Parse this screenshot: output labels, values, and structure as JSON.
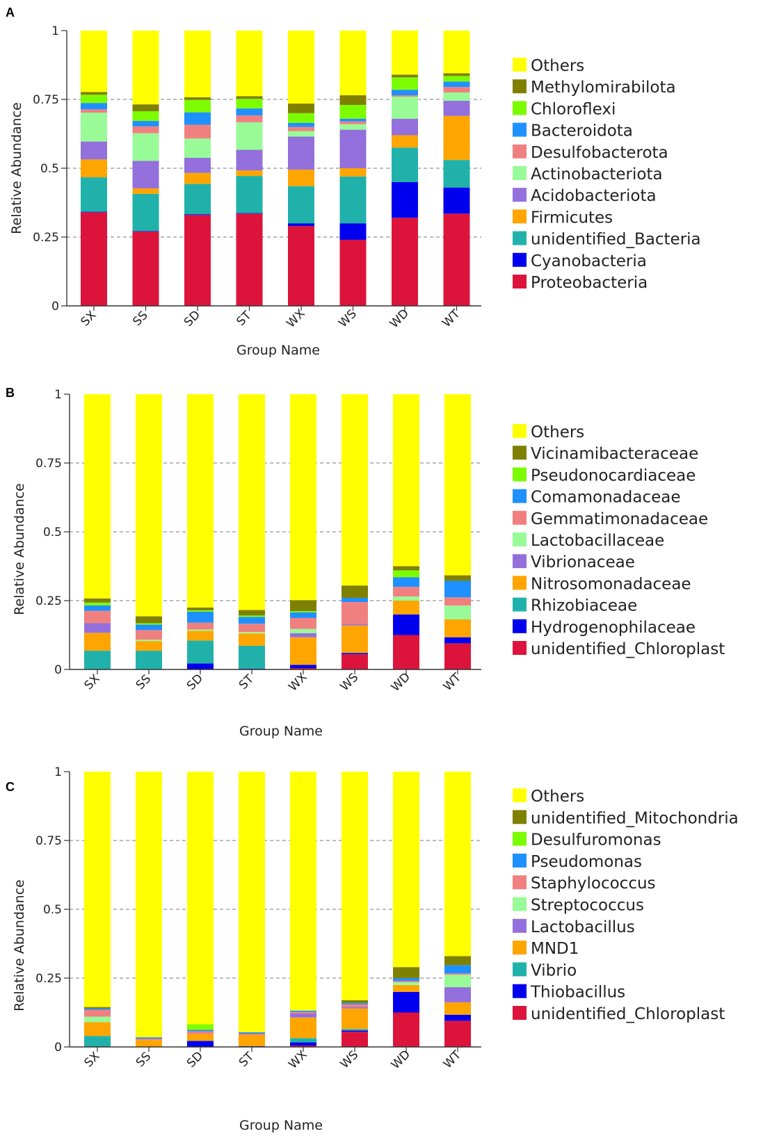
{
  "colors": {
    "Proteobacteria": "#dc143c",
    "Cyanobacteria": "#0000ee",
    "unidentified_Bacteria": "#20b2aa",
    "Firmicutes": "#ffa500",
    "Acidobacteriota": "#9370db",
    "Actinobacteriota": "#98fb98",
    "Desulfobacterota": "#f08080",
    "Bacteroidota": "#1e90ff",
    "Chloroflexi": "#7cfc00",
    "Methylomirabilota": "#808000",
    "Others": "#ffff00"
  },
  "chart_data": [
    {
      "panel": "A",
      "type": "bar",
      "stacked": true,
      "xlabel": "Group Name",
      "ylabel": "Relative Abundance",
      "ylim": [
        0,
        1
      ],
      "yticks": [
        "0",
        "0.25",
        "0.5",
        "0.75",
        "1"
      ],
      "categories": [
        "SX",
        "SS",
        "SD",
        "ST",
        "WX",
        "WS",
        "WD",
        "WT"
      ],
      "legend_position": "right",
      "series": [
        {
          "name": "Proteobacteria",
          "color": "#dc143c",
          "values": [
            0.34,
            0.27,
            0.33,
            0.335,
            0.29,
            0.24,
            0.32,
            0.335
          ]
        },
        {
          "name": "Cyanobacteria",
          "color": "#0000ee",
          "values": [
            0.002,
            0.002,
            0.003,
            0.002,
            0.01,
            0.06,
            0.13,
            0.095
          ]
        },
        {
          "name": "unidentified_Bacteria",
          "color": "#20b2aa",
          "values": [
            0.125,
            0.135,
            0.11,
            0.135,
            0.135,
            0.17,
            0.125,
            0.1
          ]
        },
        {
          "name": "Firmicutes",
          "color": "#ffa500",
          "values": [
            0.065,
            0.02,
            0.04,
            0.02,
            0.06,
            0.03,
            0.045,
            0.16
          ]
        },
        {
          "name": "Acidobacteriota",
          "color": "#9370db",
          "values": [
            0.065,
            0.1,
            0.055,
            0.075,
            0.12,
            0.14,
            0.06,
            0.055
          ]
        },
        {
          "name": "Actinobacteriota",
          "color": "#98fb98",
          "values": [
            0.105,
            0.1,
            0.07,
            0.1,
            0.02,
            0.02,
            0.08,
            0.03
          ]
        },
        {
          "name": "Desulfobacterota",
          "color": "#f08080",
          "values": [
            0.012,
            0.025,
            0.05,
            0.025,
            0.015,
            0.01,
            0.005,
            0.02
          ]
        },
        {
          "name": "Bacteroidota",
          "color": "#1e90ff",
          "values": [
            0.023,
            0.02,
            0.045,
            0.025,
            0.015,
            0.01,
            0.02,
            0.02
          ]
        },
        {
          "name": "Chloroflexi",
          "color": "#7cfc00",
          "values": [
            0.03,
            0.035,
            0.045,
            0.035,
            0.035,
            0.05,
            0.045,
            0.02
          ]
        },
        {
          "name": "Methylomirabilota",
          "color": "#808000",
          "values": [
            0.01,
            0.025,
            0.01,
            0.01,
            0.035,
            0.035,
            0.01,
            0.01
          ]
        },
        {
          "name": "Others",
          "color": "#ffff00",
          "values": [
            0.223,
            0.268,
            0.242,
            0.238,
            0.265,
            0.235,
            0.16,
            0.155
          ]
        }
      ]
    },
    {
      "panel": "B",
      "type": "bar",
      "stacked": true,
      "xlabel": "Group Name",
      "ylabel": "Relative Abundance",
      "ylim": [
        0,
        1
      ],
      "yticks": [
        "0",
        "0.25",
        "0.5",
        "0.75",
        "1"
      ],
      "categories": [
        "SX",
        "SS",
        "SD",
        "ST",
        "WX",
        "WS",
        "WD",
        "WT"
      ],
      "legend_position": "right",
      "series": [
        {
          "name": "unidentified_Chloroplast",
          "color": "#dc143c",
          "values": [
            0.0,
            0.0,
            0.0,
            0.0,
            0.005,
            0.055,
            0.125,
            0.095
          ]
        },
        {
          "name": "Hydrogenophilaceae",
          "color": "#0000ee",
          "values": [
            0.0,
            0.0,
            0.022,
            0.003,
            0.012,
            0.005,
            0.075,
            0.022
          ]
        },
        {
          "name": "Rhizobiaceae",
          "color": "#20b2aa",
          "values": [
            0.068,
            0.068,
            0.083,
            0.083,
            0.0,
            0.0,
            0.0,
            0.0
          ]
        },
        {
          "name": "Nitrosomonadaceae",
          "color": "#ffa500",
          "values": [
            0.065,
            0.035,
            0.035,
            0.045,
            0.1,
            0.1,
            0.05,
            0.065
          ]
        },
        {
          "name": "Vibrionaceae",
          "color": "#9370db",
          "values": [
            0.035,
            0.0,
            0.0,
            0.0,
            0.015,
            0.005,
            0.0,
            0.0
          ]
        },
        {
          "name": "Lactobacillaceae",
          "color": "#98fb98",
          "values": [
            0.0,
            0.005,
            0.005,
            0.005,
            0.015,
            0.0,
            0.015,
            0.05
          ]
        },
        {
          "name": "Gemmatimonadaceae",
          "color": "#f08080",
          "values": [
            0.045,
            0.035,
            0.025,
            0.03,
            0.04,
            0.08,
            0.035,
            0.03
          ]
        },
        {
          "name": "Comamonadaceae",
          "color": "#1e90ff",
          "values": [
            0.02,
            0.02,
            0.04,
            0.025,
            0.02,
            0.015,
            0.035,
            0.06
          ]
        },
        {
          "name": "Pseudonocardiaceae",
          "color": "#7cfc00",
          "values": [
            0.01,
            0.005,
            0.005,
            0.005,
            0.005,
            0.0,
            0.025,
            0.0
          ]
        },
        {
          "name": "Vicinamibacteraceae",
          "color": "#808000",
          "values": [
            0.015,
            0.025,
            0.01,
            0.02,
            0.04,
            0.045,
            0.015,
            0.02
          ]
        },
        {
          "name": "Others",
          "color": "#ffff00",
          "values": [
            0.742,
            0.807,
            0.775,
            0.784,
            0.748,
            0.695,
            0.625,
            0.658
          ]
        }
      ]
    },
    {
      "panel": "C",
      "type": "bar",
      "stacked": true,
      "xlabel": "Group Name",
      "ylabel": "Relative Abundance",
      "ylim": [
        0,
        1
      ],
      "yticks": [
        "0",
        "0.25",
        "0.5",
        "0.75",
        "1"
      ],
      "categories": [
        "SX",
        "SS",
        "SD",
        "ST",
        "WX",
        "WS",
        "WD",
        "WT"
      ],
      "legend_position": "right",
      "series": [
        {
          "name": "unidentified_Chloroplast",
          "color": "#dc143c",
          "values": [
            0.0,
            0.0,
            0.0,
            0.0,
            0.005,
            0.055,
            0.125,
            0.095
          ]
        },
        {
          "name": "Thiobacillus",
          "color": "#0000ee",
          "values": [
            0.0,
            0.0,
            0.022,
            0.003,
            0.012,
            0.005,
            0.075,
            0.022
          ]
        },
        {
          "name": "Vibrio",
          "color": "#20b2aa",
          "values": [
            0.04,
            0.0,
            0.0,
            0.0,
            0.015,
            0.005,
            0.0,
            0.0
          ]
        },
        {
          "name": "MND1",
          "color": "#ffa500",
          "values": [
            0.05,
            0.025,
            0.025,
            0.04,
            0.075,
            0.075,
            0.025,
            0.045
          ]
        },
        {
          "name": "Lactobacillus",
          "color": "#9370db",
          "values": [
            0.0,
            0.0,
            0.0,
            0.0,
            0.015,
            0.005,
            0.0,
            0.055
          ]
        },
        {
          "name": "Streptococcus",
          "color": "#98fb98",
          "values": [
            0.02,
            0.0,
            0.0,
            0.0,
            0.0,
            0.0,
            0.01,
            0.045
          ]
        },
        {
          "name": "Staphylococcus",
          "color": "#f08080",
          "values": [
            0.025,
            0.005,
            0.01,
            0.005,
            0.005,
            0.01,
            0.005,
            0.005
          ]
        },
        {
          "name": "Pseudomonas",
          "color": "#1e90ff",
          "values": [
            0.005,
            0.005,
            0.005,
            0.005,
            0.005,
            0.005,
            0.01,
            0.03
          ]
        },
        {
          "name": "Desulfuromonas",
          "color": "#7cfc00",
          "values": [
            0.0,
            0.0,
            0.02,
            0.0,
            0.0,
            0.0,
            0.0,
            0.0
          ]
        },
        {
          "name": "unidentified_Mitochondria",
          "color": "#808000",
          "values": [
            0.005,
            0.0,
            0.0,
            0.0,
            0.0,
            0.01,
            0.04,
            0.033
          ]
        },
        {
          "name": "Others",
          "color": "#ffff00",
          "values": [
            0.855,
            0.965,
            0.918,
            0.947,
            0.868,
            0.83,
            0.71,
            0.67
          ]
        }
      ]
    }
  ]
}
